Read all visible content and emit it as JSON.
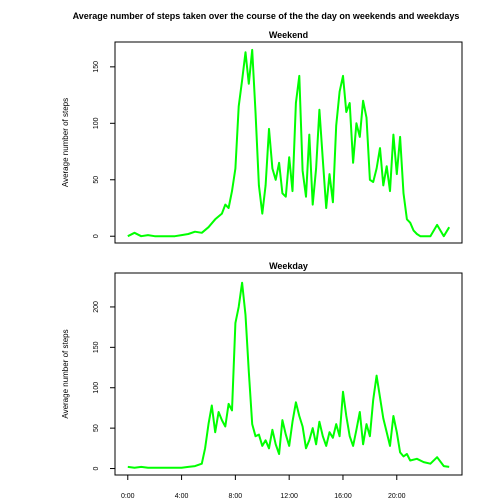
{
  "chart_data": {
    "title": "Average number of steps taken over the course of the the day on weekends and weekdays",
    "x_tick_labels": [
      "0:00",
      "4:00",
      "8:00",
      "12:00",
      "16:00",
      "20:00"
    ],
    "x_ticks_hours": [
      0,
      4,
      8,
      12,
      16,
      20
    ],
    "xlim_hours": [
      -0.95,
      24.85
    ],
    "line_color": "#00ff00",
    "panels": [
      {
        "type": "line",
        "title": "Weekend",
        "ylabel": "Average number of steps",
        "ylim": [
          -6,
          172
        ],
        "y_ticks": [
          0,
          50,
          100,
          150
        ],
        "x_hours": [
          0,
          0.5,
          1,
          1.5,
          2,
          2.5,
          3,
          3.5,
          4,
          4.5,
          5,
          5.5,
          6,
          6.5,
          7,
          7.25,
          7.5,
          7.75,
          8,
          8.25,
          8.5,
          8.75,
          9,
          9.25,
          9.5,
          9.75,
          10,
          10.25,
          10.5,
          10.75,
          11,
          11.25,
          11.5,
          11.75,
          12,
          12.25,
          12.5,
          12.75,
          13,
          13.25,
          13.5,
          13.75,
          14,
          14.25,
          14.5,
          14.75,
          15,
          15.25,
          15.5,
          15.75,
          16,
          16.25,
          16.5,
          16.75,
          17,
          17.25,
          17.5,
          17.75,
          18,
          18.25,
          18.5,
          18.75,
          19,
          19.25,
          19.5,
          19.75,
          20,
          20.25,
          20.5,
          20.75,
          21,
          21.25,
          21.5,
          21.75,
          22,
          22.5,
          23,
          23.5,
          23.9
        ],
        "values": [
          0,
          3,
          0,
          1,
          0,
          0,
          0,
          0,
          1,
          2,
          4,
          3,
          8,
          15,
          20,
          28,
          25,
          40,
          60,
          115,
          138,
          163,
          135,
          165,
          110,
          45,
          20,
          45,
          95,
          60,
          50,
          65,
          38,
          35,
          70,
          40,
          118,
          142,
          58,
          35,
          90,
          28,
          60,
          112,
          68,
          25,
          55,
          30,
          98,
          128,
          142,
          110,
          118,
          65,
          100,
          88,
          120,
          105,
          50,
          48,
          60,
          78,
          45,
          62,
          40,
          90,
          55,
          88,
          38,
          15,
          12,
          5,
          2,
          0,
          0,
          0,
          10,
          0,
          8
        ]
      },
      {
        "type": "line",
        "title": "Weekday",
        "ylabel": "Average number of steps",
        "ylim": [
          -8,
          242
        ],
        "y_ticks": [
          0,
          50,
          100,
          150,
          200
        ],
        "x_hours": [
          0,
          0.5,
          1,
          1.5,
          2,
          2.5,
          3,
          3.5,
          4,
          4.5,
          5,
          5.5,
          5.75,
          6,
          6.25,
          6.5,
          6.75,
          7,
          7.25,
          7.5,
          7.75,
          8,
          8.25,
          8.5,
          8.75,
          9,
          9.25,
          9.5,
          9.75,
          10,
          10.25,
          10.5,
          10.75,
          11,
          11.25,
          11.5,
          11.75,
          12,
          12.25,
          12.5,
          12.75,
          13,
          13.25,
          13.5,
          13.75,
          14,
          14.25,
          14.5,
          14.75,
          15,
          15.25,
          15.5,
          15.75,
          16,
          16.25,
          16.5,
          16.75,
          17,
          17.25,
          17.5,
          17.75,
          18,
          18.25,
          18.5,
          18.75,
          19,
          19.25,
          19.5,
          19.75,
          20,
          20.25,
          20.5,
          20.75,
          21,
          21.5,
          22,
          22.5,
          23,
          23.5,
          23.9
        ],
        "values": [
          2,
          1,
          2,
          1,
          1,
          1,
          1,
          1,
          1,
          2,
          3,
          6,
          25,
          55,
          78,
          45,
          70,
          60,
          52,
          80,
          72,
          180,
          200,
          230,
          190,
          120,
          55,
          40,
          42,
          28,
          35,
          25,
          48,
          30,
          18,
          60,
          42,
          28,
          58,
          82,
          65,
          52,
          25,
          35,
          50,
          30,
          58,
          40,
          28,
          45,
          38,
          55,
          40,
          95,
          65,
          40,
          28,
          48,
          70,
          30,
          55,
          40,
          85,
          115,
          88,
          62,
          45,
          28,
          65,
          45,
          20,
          15,
          18,
          10,
          12,
          8,
          6,
          14,
          3,
          2
        ]
      }
    ]
  }
}
